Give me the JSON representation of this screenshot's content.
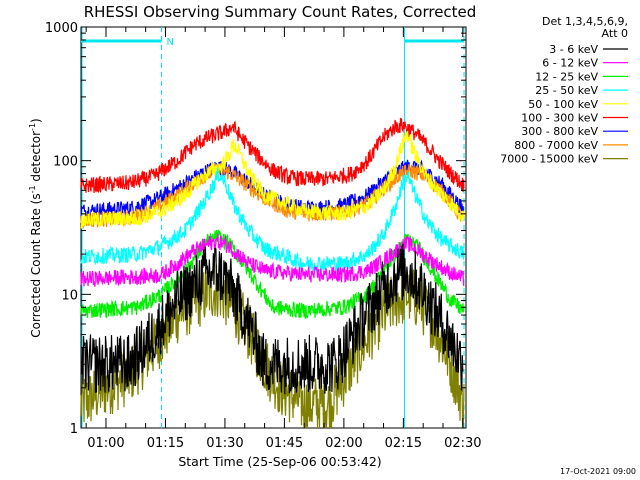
{
  "chart_data": {
    "type": "line",
    "title": "RHESSI Observing Summary Count Rates, Corrected",
    "xlabel": "Start Time (25-Sep-06 00:53:42)",
    "ylabel": "Corrected Count Rate (s⁻¹ detector⁻¹)",
    "ylabel_main": "Corrected Count Rate (s",
    "ylabel_sup1": "-1",
    "ylabel_mid": " detector",
    "ylabel_sup2": "-1",
    "ylabel_end": ")",
    "x_range_minutes": [
      53.7,
      150.8
    ],
    "y_scale": "log",
    "ylim": [
      1,
      1000
    ],
    "y_ticks": [
      {
        "value": 1,
        "label": "1"
      },
      {
        "value": 10,
        "label": "10"
      },
      {
        "value": 100,
        "label": "100"
      },
      {
        "value": 1000,
        "label": "1000"
      }
    ],
    "x_ticks": [
      {
        "minute": 60,
        "label": "01:00"
      },
      {
        "minute": 75,
        "label": "01:15"
      },
      {
        "minute": 90,
        "label": "01:30"
      },
      {
        "minute": 105,
        "label": "01:45"
      },
      {
        "minute": 120,
        "label": "02:00"
      },
      {
        "minute": 135,
        "label": "02:15"
      },
      {
        "minute": 150,
        "label": "02:30"
      }
    ],
    "legend_header": [
      "Det 1,3,4,5,6,9,",
      "Att 0"
    ],
    "legend_position": "right",
    "footer": "17-Oct-2021 09:00",
    "annotations": {
      "saa_label": "N",
      "saa_bars": [
        [
          53.7,
          74.0
        ],
        [
          135.3,
          150.3
        ]
      ],
      "dashed_lines_minutes": [
        74.0,
        150.3
      ],
      "solid_lines_minutes": [
        135.3
      ]
    },
    "series": [
      {
        "name": "3 - 6 keV",
        "color": "#000000",
        "points": [
          [
            53.7,
            3
          ],
          [
            66,
            3
          ],
          [
            72,
            5
          ],
          [
            78,
            9
          ],
          [
            85,
            14
          ],
          [
            88,
            15
          ],
          [
            91,
            12
          ],
          [
            96,
            6
          ],
          [
            100,
            3
          ],
          [
            110,
            3
          ],
          [
            118,
            3
          ],
          [
            124,
            6
          ],
          [
            129,
            10
          ],
          [
            133,
            14
          ],
          [
            136,
            15
          ],
          [
            139,
            12
          ],
          [
            145,
            6
          ],
          [
            150,
            3
          ]
        ]
      },
      {
        "name": "6 - 12 keV",
        "color": "#ff00ff",
        "points": [
          [
            53.7,
            13
          ],
          [
            68,
            13.5
          ],
          [
            74,
            14
          ],
          [
            78,
            17
          ],
          [
            82,
            21
          ],
          [
            86,
            24
          ],
          [
            88,
            25
          ],
          [
            91,
            23
          ],
          [
            96,
            17
          ],
          [
            100,
            15
          ],
          [
            110,
            14
          ],
          [
            120,
            14
          ],
          [
            126,
            15
          ],
          [
            130,
            18
          ],
          [
            134,
            22
          ],
          [
            136,
            24
          ],
          [
            138,
            22
          ],
          [
            142,
            18
          ],
          [
            146,
            15
          ],
          [
            150.3,
            13
          ]
        ]
      },
      {
        "name": "12 - 25 keV",
        "color": "#00ee00",
        "points": [
          [
            53.7,
            7.5
          ],
          [
            68,
            8
          ],
          [
            74,
            10
          ],
          [
            80,
            15
          ],
          [
            85,
            24
          ],
          [
            88,
            27
          ],
          [
            91,
            24
          ],
          [
            96,
            15
          ],
          [
            102,
            8
          ],
          [
            110,
            7.5
          ],
          [
            120,
            8
          ],
          [
            126,
            10
          ],
          [
            130,
            15
          ],
          [
            134,
            22
          ],
          [
            136,
            26
          ],
          [
            139,
            22
          ],
          [
            143,
            14
          ],
          [
            147,
            9
          ],
          [
            150.3,
            7.5
          ]
        ]
      },
      {
        "name": "25 - 50 keV",
        "color": "#00ffff",
        "points": [
          [
            53.7,
            19
          ],
          [
            68,
            20
          ],
          [
            74,
            23
          ],
          [
            80,
            30
          ],
          [
            84,
            45
          ],
          [
            87,
            65
          ],
          [
            88.5,
            80
          ],
          [
            90,
            70
          ],
          [
            92,
            48
          ],
          [
            96,
            30
          ],
          [
            100,
            22
          ],
          [
            110,
            17
          ],
          [
            120,
            17
          ],
          [
            126,
            20
          ],
          [
            130,
            28
          ],
          [
            133,
            45
          ],
          [
            135,
            70
          ],
          [
            136,
            78
          ],
          [
            138,
            55
          ],
          [
            141,
            35
          ],
          [
            145,
            25
          ],
          [
            150.3,
            20
          ]
        ]
      },
      {
        "name": "50 - 100 keV",
        "color": "#ffff00",
        "points": [
          [
            53.7,
            36
          ],
          [
            68,
            37
          ],
          [
            74,
            42
          ],
          [
            80,
            55
          ],
          [
            84,
            75
          ],
          [
            87,
            85
          ],
          [
            89,
            90
          ],
          [
            91,
            110
          ],
          [
            92,
            130
          ],
          [
            93,
            125
          ],
          [
            96,
            80
          ],
          [
            100,
            55
          ],
          [
            110,
            42
          ],
          [
            120,
            40
          ],
          [
            126,
            46
          ],
          [
            130,
            60
          ],
          [
            133,
            90
          ],
          [
            135,
            140
          ],
          [
            136,
            160
          ],
          [
            138,
            110
          ],
          [
            141,
            75
          ],
          [
            145,
            55
          ],
          [
            150.3,
            38
          ]
        ]
      },
      {
        "name": "100 - 300 keV",
        "color": "#ff0000",
        "points": [
          [
            53.7,
            65
          ],
          [
            66,
            68
          ],
          [
            72,
            76
          ],
          [
            78,
            100
          ],
          [
            82,
            130
          ],
          [
            86,
            150
          ],
          [
            90,
            165
          ],
          [
            92,
            180
          ],
          [
            94,
            150
          ],
          [
            98,
            110
          ],
          [
            102,
            85
          ],
          [
            106,
            75
          ],
          [
            110,
            73
          ],
          [
            116,
            73
          ],
          [
            122,
            80
          ],
          [
            126,
            100
          ],
          [
            130,
            150
          ],
          [
            133,
            180
          ],
          [
            135,
            185
          ],
          [
            138,
            160
          ],
          [
            141,
            130
          ],
          [
            144,
            100
          ],
          [
            147,
            80
          ],
          [
            150.3,
            65
          ]
        ]
      },
      {
        "name": "300 - 800 keV",
        "color": "#0000ff",
        "points": [
          [
            53.7,
            42
          ],
          [
            66,
            44
          ],
          [
            72,
            50
          ],
          [
            78,
            62
          ],
          [
            84,
            80
          ],
          [
            88,
            90
          ],
          [
            91,
            85
          ],
          [
            95,
            72
          ],
          [
            100,
            55
          ],
          [
            106,
            46
          ],
          [
            112,
            44
          ],
          [
            120,
            46
          ],
          [
            126,
            55
          ],
          [
            130,
            70
          ],
          [
            134,
            85
          ],
          [
            137,
            92
          ],
          [
            140,
            85
          ],
          [
            145,
            65
          ],
          [
            150.3,
            42
          ]
        ]
      },
      {
        "name": "800 - 7000 keV",
        "color": "#ff8c00",
        "points": [
          [
            53.7,
            36
          ],
          [
            66,
            37
          ],
          [
            72,
            43
          ],
          [
            78,
            55
          ],
          [
            84,
            75
          ],
          [
            88,
            85
          ],
          [
            91,
            82
          ],
          [
            95,
            68
          ],
          [
            100,
            52
          ],
          [
            106,
            42
          ],
          [
            112,
            40
          ],
          [
            120,
            41
          ],
          [
            126,
            48
          ],
          [
            130,
            62
          ],
          [
            134,
            78
          ],
          [
            137,
            84
          ],
          [
            140,
            78
          ],
          [
            145,
            58
          ],
          [
            150.3,
            36
          ]
        ]
      },
      {
        "name": "7000 - 15000 keV",
        "color": "#808000",
        "points": [
          [
            53.7,
            1.5
          ],
          [
            60,
            2
          ],
          [
            66,
            2.5
          ],
          [
            72,
            4
          ],
          [
            78,
            7
          ],
          [
            85,
            10
          ],
          [
            88,
            11
          ],
          [
            91,
            9
          ],
          [
            95,
            6
          ],
          [
            100,
            3
          ],
          [
            104,
            2
          ],
          [
            110,
            1.5
          ],
          [
            116,
            1.5
          ],
          [
            122,
            3
          ],
          [
            128,
            6
          ],
          [
            133,
            9
          ],
          [
            136,
            10
          ],
          [
            139,
            9
          ],
          [
            143,
            6
          ],
          [
            147,
            3
          ],
          [
            150.3,
            1.5
          ]
        ]
      }
    ]
  }
}
